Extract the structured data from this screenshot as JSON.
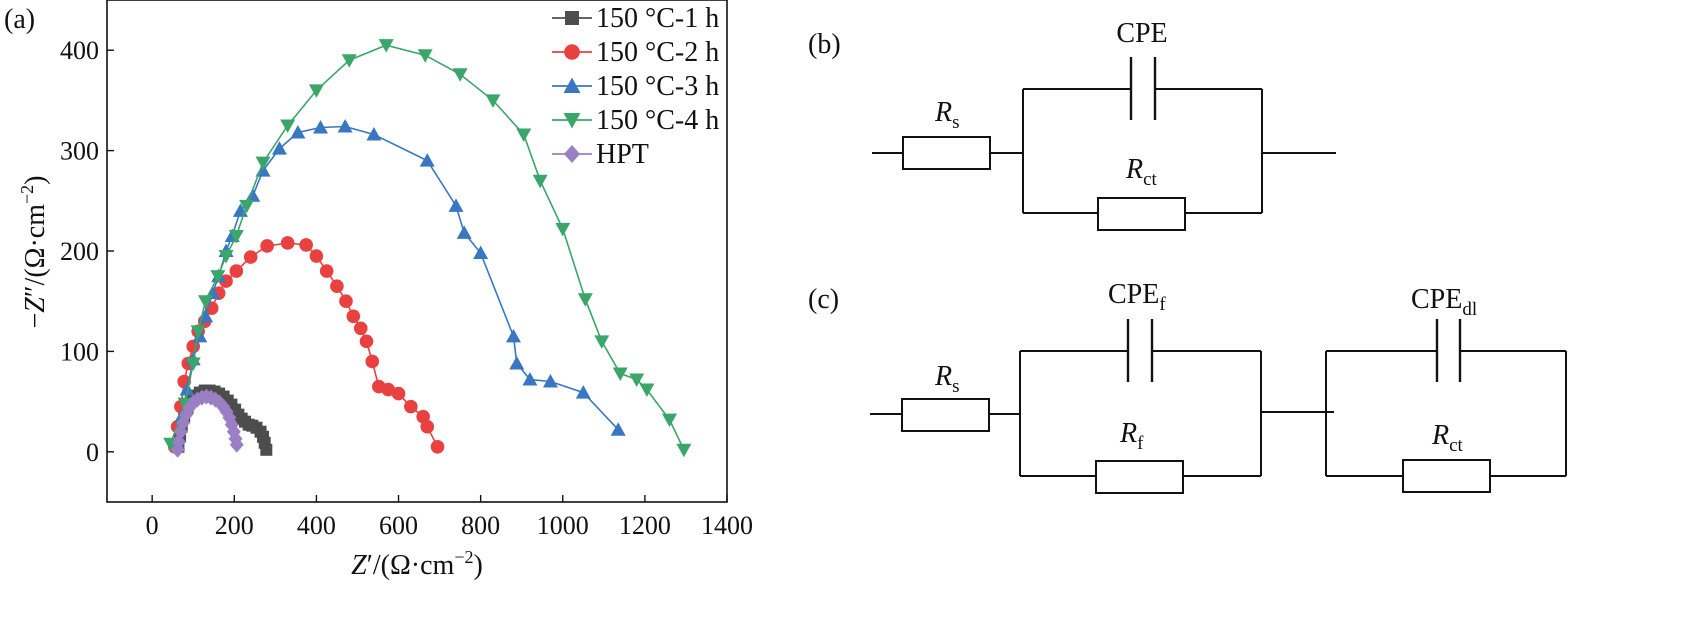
{
  "panels": {
    "a": "(a)",
    "b": "(b)",
    "c": "(c)"
  },
  "chart_data": {
    "type": "line",
    "x_axis": {
      "label_italic": "Z",
      "label_rest": "′/(Ω·cm",
      "label_exp": "−2",
      "label_close": ")",
      "range": [
        -110,
        1400
      ],
      "ticks": [
        0,
        200,
        400,
        600,
        800,
        1000,
        1200,
        1400
      ]
    },
    "y_axis": {
      "label_prefix": "−",
      "label_italic": "Z",
      "label_rest": "″/(Ω·cm",
      "label_exp": "−2",
      "label_close": ")",
      "range": [
        -50,
        450
      ],
      "ticks": [
        0,
        100,
        200,
        300,
        400
      ]
    },
    "legend_position": "top-right",
    "series": [
      {
        "name": "150 °C-1 h",
        "color": "#4d4d4d",
        "marker": "square",
        "points": [
          [
            64,
            5
          ],
          [
            68,
            15
          ],
          [
            72,
            25
          ],
          [
            78,
            35
          ],
          [
            86,
            44
          ],
          [
            95,
            51
          ],
          [
            105,
            56
          ],
          [
            116,
            59
          ],
          [
            128,
            61
          ],
          [
            140,
            61
          ],
          [
            152,
            60
          ],
          [
            163,
            58
          ],
          [
            174,
            55
          ],
          [
            184,
            51
          ],
          [
            193,
            47
          ],
          [
            202,
            42
          ],
          [
            210,
            37
          ],
          [
            218,
            33
          ],
          [
            226,
            30
          ],
          [
            235,
            27
          ],
          [
            244,
            26
          ],
          [
            254,
            24
          ],
          [
            264,
            20
          ],
          [
            270,
            15
          ],
          [
            274,
            9
          ],
          [
            278,
            2
          ]
        ]
      },
      {
        "name": "150 °C-2 h",
        "color": "#e8413f",
        "marker": "circle",
        "points": [
          [
            55,
            5
          ],
          [
            62,
            25
          ],
          [
            70,
            45
          ],
          [
            78,
            70
          ],
          [
            88,
            88
          ],
          [
            100,
            105
          ],
          [
            112,
            120
          ],
          [
            128,
            130
          ],
          [
            145,
            143
          ],
          [
            162,
            158
          ],
          [
            180,
            170
          ],
          [
            205,
            180
          ],
          [
            240,
            194
          ],
          [
            280,
            205
          ],
          [
            330,
            208
          ],
          [
            375,
            206
          ],
          [
            400,
            195
          ],
          [
            425,
            180
          ],
          [
            450,
            165
          ],
          [
            472,
            150
          ],
          [
            490,
            135
          ],
          [
            508,
            123
          ],
          [
            522,
            110
          ],
          [
            536,
            90
          ],
          [
            552,
            65
          ],
          [
            575,
            62
          ],
          [
            600,
            58
          ],
          [
            630,
            45
          ],
          [
            660,
            35
          ],
          [
            670,
            25
          ],
          [
            695,
            5
          ]
        ]
      },
      {
        "name": "150 °C-3 h",
        "color": "#3a77c2",
        "marker": "triangle-up",
        "points": [
          [
            62,
            8
          ],
          [
            72,
            35
          ],
          [
            85,
            62
          ],
          [
            100,
            92
          ],
          [
            116,
            115
          ],
          [
            130,
            135
          ],
          [
            147,
            158
          ],
          [
            162,
            175
          ],
          [
            180,
            200
          ],
          [
            195,
            215
          ],
          [
            215,
            240
          ],
          [
            245,
            255
          ],
          [
            270,
            280
          ],
          [
            310,
            302
          ],
          [
            355,
            318
          ],
          [
            410,
            323
          ],
          [
            470,
            324
          ],
          [
            540,
            316
          ],
          [
            670,
            290
          ],
          [
            740,
            245
          ],
          [
            760,
            218
          ],
          [
            800,
            198
          ],
          [
            880,
            115
          ],
          [
            888,
            88
          ],
          [
            920,
            72
          ],
          [
            970,
            70
          ],
          [
            1050,
            59
          ],
          [
            1135,
            22
          ]
        ]
      },
      {
        "name": "150 °C-4 h",
        "color": "#3aa66a",
        "marker": "triangle-down",
        "points": [
          [
            45,
            8
          ],
          [
            80,
            48
          ],
          [
            100,
            88
          ],
          [
            112,
            120
          ],
          [
            130,
            150
          ],
          [
            160,
            175
          ],
          [
            180,
            195
          ],
          [
            205,
            215
          ],
          [
            230,
            245
          ],
          [
            270,
            288
          ],
          [
            330,
            325
          ],
          [
            400,
            360
          ],
          [
            480,
            390
          ],
          [
            570,
            405
          ],
          [
            665,
            395
          ],
          [
            750,
            376
          ],
          [
            830,
            350
          ],
          [
            905,
            316
          ],
          [
            945,
            270
          ],
          [
            1000,
            222
          ],
          [
            1055,
            152
          ],
          [
            1095,
            110
          ],
          [
            1140,
            78
          ],
          [
            1180,
            72
          ],
          [
            1205,
            62
          ],
          [
            1260,
            32
          ],
          [
            1295,
            2
          ]
        ]
      },
      {
        "name": "HPT",
        "color": "#9b7fc4",
        "marker": "diamond",
        "points": [
          [
            62,
            2
          ],
          [
            65,
            10
          ],
          [
            70,
            20
          ],
          [
            76,
            29
          ],
          [
            83,
            37
          ],
          [
            91,
            44
          ],
          [
            100,
            49
          ],
          [
            110,
            52
          ],
          [
            121,
            54
          ],
          [
            132,
            55
          ],
          [
            143,
            54
          ],
          [
            154,
            52
          ],
          [
            164,
            49
          ],
          [
            173,
            45
          ],
          [
            181,
            40
          ],
          [
            188,
            34
          ],
          [
            194,
            27
          ],
          [
            199,
            20
          ],
          [
            203,
            13
          ],
          [
            206,
            7
          ]
        ]
      }
    ]
  },
  "circuit_b": {
    "rs_main": "R",
    "rs_sub": "s",
    "cpe": "CPE",
    "rct_main": "R",
    "rct_sub": "ct"
  },
  "circuit_c": {
    "rs_main": "R",
    "rs_sub": "s",
    "cpef_main": "CPE",
    "cpef_sub": "f",
    "rf_main": "R",
    "rf_sub": "f",
    "cpedl_main": "CPE",
    "cpedl_sub": "dl",
    "rct_main": "R",
    "rct_sub": "ct"
  }
}
